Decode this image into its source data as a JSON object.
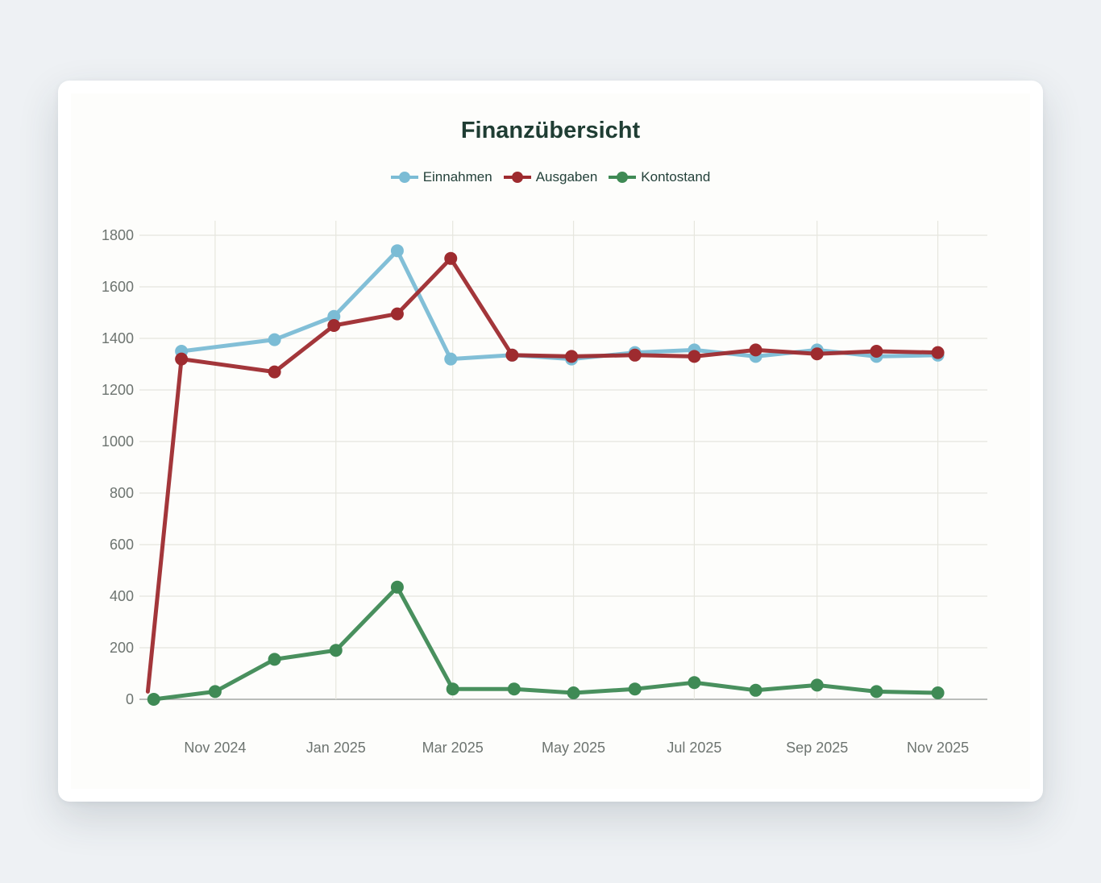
{
  "chart_data": {
    "type": "line",
    "title": "Finanzübersicht",
    "xlabel": "",
    "ylabel": "",
    "ylim": [
      0,
      1800
    ],
    "yticks": [
      0,
      200,
      400,
      600,
      800,
      1000,
      1200,
      1400,
      1600,
      1800
    ],
    "xtick_labels": [
      "Nov 2024",
      "Jan 2025",
      "Mar 2025",
      "May 2025",
      "Jul 2025",
      "Sep 2025",
      "Nov 2025"
    ],
    "xtick_dates": [
      "2024-11-01",
      "2025-01-01",
      "2025-03-01",
      "2025-05-01",
      "2025-07-01",
      "2025-09-01",
      "2025-11-01"
    ],
    "x_range": [
      "2024-09-25",
      "2025-11-26"
    ],
    "grid": true,
    "legend_position": "top",
    "series": [
      {
        "name": "Einnahmen",
        "color": "#7bbcd5",
        "points": [
          {
            "x": "2024-10-15",
            "y": 1350
          },
          {
            "x": "2024-12-01",
            "y": 1395
          },
          {
            "x": "2024-12-31",
            "y": 1485
          },
          {
            "x": "2025-02-01",
            "y": 1740
          },
          {
            "x": "2025-02-28",
            "y": 1320
          },
          {
            "x": "2025-03-31",
            "y": 1335
          },
          {
            "x": "2025-04-30",
            "y": 1320
          },
          {
            "x": "2025-06-01",
            "y": 1345
          },
          {
            "x": "2025-07-01",
            "y": 1355
          },
          {
            "x": "2025-08-01",
            "y": 1330
          },
          {
            "x": "2025-09-01",
            "y": 1355
          },
          {
            "x": "2025-10-01",
            "y": 1330
          },
          {
            "x": "2025-11-01",
            "y": 1335
          }
        ]
      },
      {
        "name": "Ausgaben",
        "color": "#9e2b2f",
        "points": [
          {
            "x": "2024-09-28",
            "y": 30
          },
          {
            "x": "2024-10-15",
            "y": 1320
          },
          {
            "x": "2024-12-01",
            "y": 1270
          },
          {
            "x": "2024-12-31",
            "y": 1450
          },
          {
            "x": "2025-02-01",
            "y": 1495
          },
          {
            "x": "2025-02-28",
            "y": 1710
          },
          {
            "x": "2025-03-31",
            "y": 1335
          },
          {
            "x": "2025-04-30",
            "y": 1330
          },
          {
            "x": "2025-06-01",
            "y": 1335
          },
          {
            "x": "2025-07-01",
            "y": 1330
          },
          {
            "x": "2025-08-01",
            "y": 1355
          },
          {
            "x": "2025-09-01",
            "y": 1340
          },
          {
            "x": "2025-10-01",
            "y": 1350
          },
          {
            "x": "2025-11-01",
            "y": 1345
          }
        ]
      },
      {
        "name": "Kontostand",
        "color": "#3f8a55",
        "points": [
          {
            "x": "2024-10-01",
            "y": 0
          },
          {
            "x": "2024-11-01",
            "y": 30
          },
          {
            "x": "2024-12-01",
            "y": 155
          },
          {
            "x": "2025-01-01",
            "y": 190
          },
          {
            "x": "2025-02-01",
            "y": 435
          },
          {
            "x": "2025-03-01",
            "y": 40
          },
          {
            "x": "2025-04-01",
            "y": 40
          },
          {
            "x": "2025-05-01",
            "y": 25
          },
          {
            "x": "2025-06-01",
            "y": 40
          },
          {
            "x": "2025-07-01",
            "y": 65
          },
          {
            "x": "2025-08-01",
            "y": 35
          },
          {
            "x": "2025-09-01",
            "y": 55
          },
          {
            "x": "2025-10-01",
            "y": 30
          },
          {
            "x": "2025-11-01",
            "y": 25
          }
        ]
      }
    ]
  }
}
